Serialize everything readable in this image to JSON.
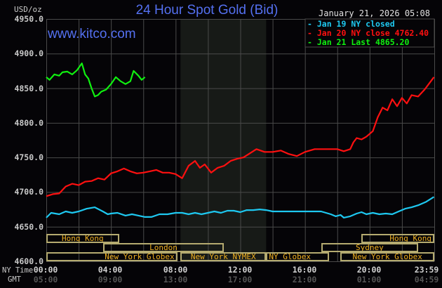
{
  "header": {
    "title": "24 Hour Spot Gold (Bid)",
    "website": "www.kitco.com",
    "date": "January 21, 2026 05:08",
    "unit": "USD/oz"
  },
  "legend": [
    {
      "label": "Jan 19 NY closed",
      "color": "#1ec8f0"
    },
    {
      "label": "Jan 20 NY close 4762.40",
      "color": "#ff1010"
    },
    {
      "label": "Jan 21 Last 4865.20",
      "color": "#10f010"
    }
  ],
  "axis": {
    "y_labels": [
      "4950.0",
      "4900.0",
      "4850.0",
      "4800.0",
      "4750.0",
      "4700.0",
      "4650.0",
      "4600.0"
    ],
    "x_row_labels": {
      "ny": "NY Time",
      "gmt": "GMT"
    },
    "ny_ticks": [
      "00:00",
      "04:00",
      "08:00",
      "12:00",
      "16:00",
      "20:00",
      "23:59"
    ],
    "gmt_ticks": [
      "05:00",
      "09:00",
      "13:00",
      "17:00",
      "21:00",
      "01:00",
      "04:59"
    ]
  },
  "sessions": [
    {
      "label": "Hong Kong",
      "row": 0,
      "start": 0,
      "end": 4.5,
      "align": "center"
    },
    {
      "label": "London",
      "row": 1,
      "start": 3.5,
      "end": 11.0,
      "align": "center"
    },
    {
      "label": "New York Globex",
      "row": 2,
      "start": 0,
      "end": 8.1,
      "align": "right"
    },
    {
      "label": "New York NYMEX",
      "row": 2,
      "start": 8.3,
      "end": 13.6,
      "align": "center"
    },
    {
      "label": "NY Globex",
      "row": 2,
      "start": 13.6,
      "end": 17.5,
      "align": "left"
    },
    {
      "label": "Hong Kong",
      "row": 0,
      "start": 19.5,
      "end": 24,
      "align": "right"
    },
    {
      "label": "Sydney",
      "row": 1,
      "start": 17.0,
      "end": 23.0,
      "align": "center"
    },
    {
      "label": "New York Globex",
      "row": 2,
      "start": 18.2,
      "end": 24,
      "align": "center"
    }
  ],
  "chart_data": {
    "type": "line",
    "title": "24 Hour Spot Gold (Bid)",
    "xlabel": "NY Time (hours)",
    "ylabel": "USD/oz",
    "ylim": [
      4600,
      4950
    ],
    "xlim": [
      0,
      24
    ],
    "grid": true,
    "legend_position": "top-right",
    "shaded_region": [
      8.3,
      13.6
    ],
    "series": [
      {
        "name": "Jan 19 NY closed",
        "color": "#1ec8f0",
        "x": [
          0,
          0.3,
          0.8,
          1.2,
          1.6,
          2.0,
          2.5,
          3.0,
          3.5,
          3.8,
          4.0,
          4.4,
          4.9,
          5.3,
          5.7,
          6.1,
          6.5,
          7.0,
          7.5,
          8.0,
          8.4,
          8.8,
          9.2,
          9.6,
          10.0,
          10.4,
          10.8,
          11.2,
          11.6,
          12.0,
          12.4,
          12.8,
          13.2,
          13.6,
          14.0,
          14.5,
          15.0,
          15.5,
          16.0,
          16.5,
          17.0,
          17.3,
          17.6,
          17.9,
          18.2,
          18.4,
          18.8,
          19.2,
          19.5,
          19.8,
          20.2,
          20.6,
          21.0,
          21.4,
          21.8,
          22.2,
          22.6,
          23.0,
          23.5,
          23.98
        ],
        "values": [
          4663,
          4670,
          4668,
          4672,
          4670,
          4672,
          4676,
          4678,
          4672,
          4668,
          4669,
          4670,
          4666,
          4668,
          4666,
          4664,
          4664,
          4668,
          4668,
          4670,
          4670,
          4668,
          4670,
          4668,
          4670,
          4672,
          4670,
          4673,
          4673,
          4671,
          4674,
          4674,
          4675,
          4674,
          4672,
          4672,
          4672,
          4672,
          4672,
          4672,
          4672,
          4670,
          4668,
          4665,
          4667,
          4663,
          4665,
          4669,
          4671,
          4668,
          4670,
          4668,
          4669,
          4668,
          4672,
          4676,
          4678,
          4681,
          4686,
          4693
        ]
      },
      {
        "name": "Jan 20 NY close 4762.40",
        "color": "#ff1010",
        "x": [
          0,
          0.4,
          0.8,
          1.2,
          1.6,
          2.0,
          2.4,
          2.8,
          3.2,
          3.6,
          4.0,
          4.4,
          4.8,
          5.2,
          5.6,
          6.0,
          6.4,
          6.8,
          7.2,
          7.6,
          8.0,
          8.4,
          8.8,
          9.2,
          9.5,
          9.8,
          10.2,
          10.6,
          11.0,
          11.4,
          11.8,
          12.2,
          12.6,
          13.0,
          13.5,
          14.0,
          14.5,
          15.0,
          15.5,
          16.0,
          16.3,
          16.6,
          17.0,
          17.5,
          18.0,
          18.4,
          18.8,
          19.0,
          19.2,
          19.5,
          19.8,
          20.2,
          20.5,
          20.8,
          21.1,
          21.4,
          21.7,
          22.0,
          22.3,
          22.6,
          23.0,
          23.4,
          23.98
        ],
        "values": [
          4694,
          4697,
          4698,
          4708,
          4712,
          4710,
          4715,
          4716,
          4720,
          4718,
          4727,
          4730,
          4734,
          4730,
          4727,
          4728,
          4730,
          4732,
          4728,
          4728,
          4726,
          4720,
          4738,
          4745,
          4735,
          4740,
          4728,
          4735,
          4738,
          4745,
          4748,
          4750,
          4756,
          4762,
          4758,
          4758,
          4760,
          4755,
          4752,
          4758,
          4760,
          4762,
          4762,
          4762,
          4762,
          4759,
          4762,
          4772,
          4778,
          4776,
          4780,
          4788,
          4808,
          4822,
          4818,
          4834,
          4824,
          4836,
          4828,
          4840,
          4838,
          4848,
          4866
        ]
      },
      {
        "name": "Jan 21 Last 4865.20",
        "color": "#10f010",
        "x": [
          0,
          0.2,
          0.5,
          0.8,
          1.0,
          1.3,
          1.6,
          1.9,
          2.2,
          2.4,
          2.6,
          2.8,
          3.0,
          3.2,
          3.4,
          3.7,
          4.0,
          4.3,
          4.6,
          4.9,
          5.2,
          5.4,
          5.7,
          5.9,
          6.1
        ],
        "values": [
          4866,
          4862,
          4870,
          4868,
          4873,
          4874,
          4870,
          4876,
          4886,
          4870,
          4864,
          4850,
          4838,
          4840,
          4845,
          4848,
          4856,
          4866,
          4860,
          4856,
          4860,
          4875,
          4868,
          4862,
          4866
        ]
      }
    ]
  }
}
